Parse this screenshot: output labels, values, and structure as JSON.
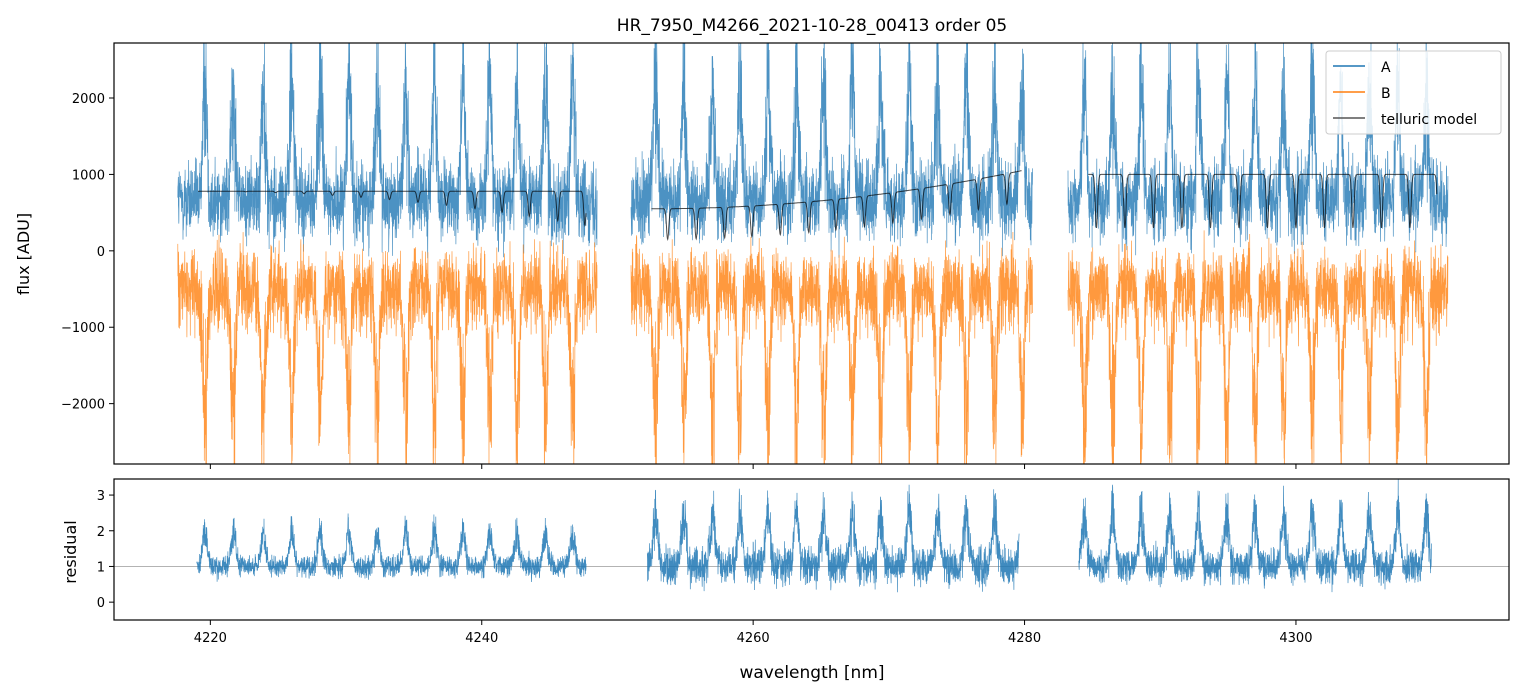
{
  "chart_data": [
    {
      "type": "line",
      "title": "HR_7950_M4266_2021-10-28_00413  order 05",
      "xlabel": "",
      "ylabel": "flux [ADU]",
      "xlim": [
        4212.9,
        4315.7
      ],
      "ylim": [
        -2790,
        2720
      ],
      "yticks": [
        2000,
        1000,
        0,
        -1000,
        -2000
      ],
      "ytick_labels": [
        "2000",
        "1000",
        "0",
        "−1000",
        "−2000"
      ],
      "legend": {
        "placement": "top-right",
        "entries": [
          "A",
          "B",
          "telluric model"
        ]
      },
      "segments_nm": [
        [
          4217.6,
          4248.5
        ],
        [
          4251.0,
          4280.6
        ],
        [
          4283.2,
          4311.2
        ]
      ],
      "line_centers_nm": [
        [
          4219.6,
          4221.7,
          4223.9,
          4226.0,
          4228.1,
          4230.2,
          4232.3,
          4234.4,
          4236.5,
          4238.6,
          4240.6,
          4242.6,
          4244.7,
          4246.7
        ],
        [
          4252.8,
          4254.9,
          4257.0,
          4259.0,
          4261.1,
          4263.2,
          4265.2,
          4267.3,
          4269.4,
          4271.5,
          4273.6,
          4275.7,
          4277.8,
          4279.8
        ],
        [
          4284.4,
          4286.5,
          4288.6,
          4290.7,
          4292.8,
          4294.9,
          4297.0,
          4299.1,
          4301.2,
          4303.3,
          4305.4,
          4307.5,
          4309.6
        ]
      ],
      "series": [
        {
          "name": "A",
          "color": "#1f77b4",
          "continuum": 650,
          "line_amplitude": 1700,
          "noise": 260
        },
        {
          "name": "B",
          "color": "#ff7f0e",
          "continuum": -500,
          "line_amplitude": -1900,
          "noise": 260
        },
        {
          "name": "telluric model",
          "color": "#000000",
          "continuum": [
            780,
            550,
            1000
          ]
        }
      ]
    },
    {
      "type": "line",
      "xlabel": "wavelength [nm]",
      "ylabel": "residual",
      "xlim": [
        4212.9,
        4315.7
      ],
      "ylim": [
        -0.5,
        3.45
      ],
      "xticks": [
        4220,
        4240,
        4260,
        4280,
        4300
      ],
      "xtick_labels": [
        "4220",
        "4240",
        "4260",
        "4280",
        "4300"
      ],
      "yticks": [
        3,
        2,
        1,
        0
      ],
      "ytick_labels": [
        "3",
        "2",
        "1",
        "0"
      ],
      "reference_line": 1,
      "segments_nm": [
        [
          4219.0,
          4247.7
        ],
        [
          4252.2,
          4279.6
        ],
        [
          4284.0,
          4310.0
        ]
      ],
      "series": [
        {
          "name": "residual",
          "color": "#1f77b4",
          "baseline": 1,
          "noise": [
            0.25,
            0.45,
            0.4
          ]
        }
      ]
    }
  ]
}
